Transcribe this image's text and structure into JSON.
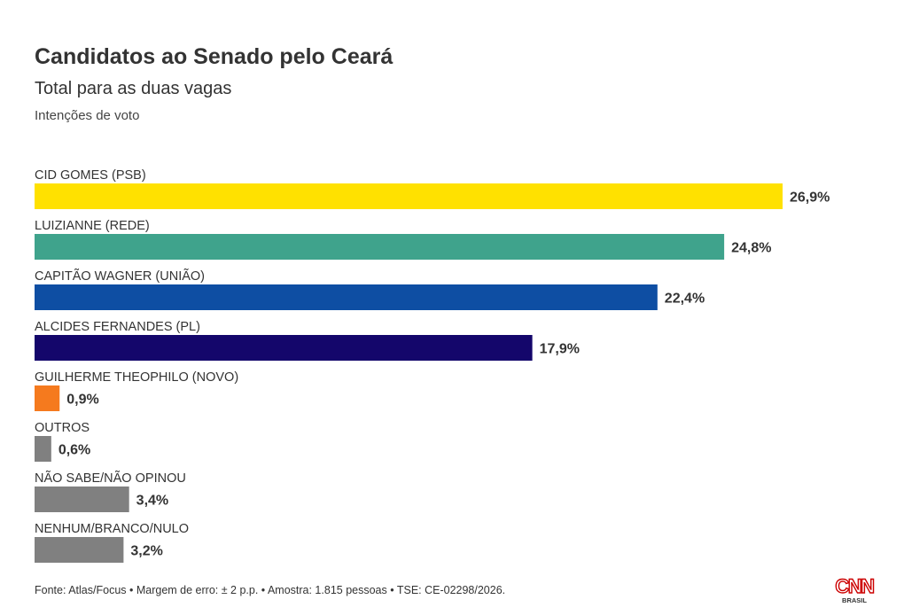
{
  "header": {
    "title": "Candidatos ao Senado pelo Ceará",
    "subtitle": "Total para as duas vagas",
    "caption": "Intenções de voto"
  },
  "footer": {
    "source": "Fonte: Atlas/Focus • Margem de erro: ± 2 p.p. • Amostra: 1.815 pessoas • TSE: CE-02298/2026."
  },
  "logo": {
    "text": "CNN",
    "subtext": "BRASIL",
    "color": "#cc0000"
  },
  "chart_data": {
    "type": "bar",
    "orientation": "horizontal",
    "title": "Candidatos ao Senado pelo Ceará",
    "subtitle": "Total para as duas vagas",
    "xlabel": "",
    "ylabel": "",
    "unit": "%",
    "grid": false,
    "legend": "none",
    "xlim": [
      0,
      26.9
    ],
    "categories": [
      "CID GOMES (PSB)",
      "LUIZIANNE (REDE)",
      "CAPITÃO WAGNER (UNIÃO)",
      "ALCIDES FERNANDES (PL)",
      "GUILHERME THEOPHILO (NOVO)",
      "OUTROS",
      "NÃO SABE/NÃO OPINOU",
      "NENHUM/BRANCO/NULO"
    ],
    "values": [
      26.9,
      24.8,
      22.4,
      17.9,
      0.9,
      0.6,
      3.4,
      3.2
    ],
    "value_labels": [
      "26,9%",
      "24,8%",
      "22,4%",
      "17,9%",
      "0,9%",
      "0,6%",
      "3,4%",
      "3,2%"
    ],
    "colors": [
      "#ffe100",
      "#3fa38c",
      "#0e4ea3",
      "#14066b",
      "#f57a1e",
      "#808080",
      "#808080",
      "#808080"
    ]
  }
}
